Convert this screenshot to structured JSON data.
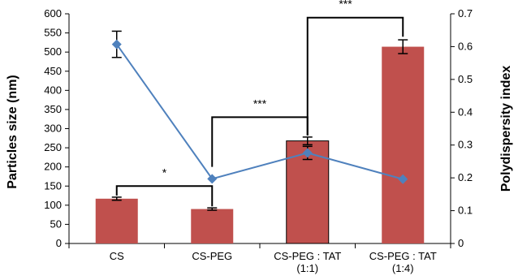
{
  "chart_data": {
    "type": "bar",
    "categories": [
      [
        "CS"
      ],
      [
        "CS-PEG"
      ],
      [
        "CS-PEG : TAT",
        "(1:1)"
      ],
      [
        "CS-PEG : TAT",
        "(1:4)"
      ]
    ],
    "ylabel": "Particles size (nm)",
    "y2label": "Polydispersity index",
    "ylim": [
      0,
      600
    ],
    "y2lim": [
      0,
      0.7
    ],
    "yticks": [
      "0",
      "50",
      "100",
      "150",
      "200",
      "250",
      "300",
      "350",
      "400",
      "450",
      "500",
      "550",
      "600"
    ],
    "y2ticks": [
      "0",
      "0.1",
      "0.2",
      "0.3",
      "0.4",
      "0.5",
      "0.6",
      "0.7"
    ],
    "series": [
      {
        "type": "bar",
        "axis": "left",
        "values": [
          117,
          90,
          268,
          514
        ],
        "errors": [
          4,
          3,
          10,
          18
        ],
        "color": "#c0504d",
        "edge_color": "#000000"
      },
      {
        "type": "line",
        "axis": "right",
        "values": [
          0.607,
          0.197,
          0.276,
          0.196
        ],
        "errors": [
          0.04,
          0,
          0.02,
          0
        ],
        "color": "#4f81bd"
      }
    ],
    "annotations": [
      {
        "from": 0,
        "to": 1,
        "label": "*"
      },
      {
        "from": 1,
        "to": 2,
        "label": "***"
      },
      {
        "from": 2,
        "to": 3,
        "label": "***"
      }
    ],
    "grid": false,
    "legend": "none"
  }
}
